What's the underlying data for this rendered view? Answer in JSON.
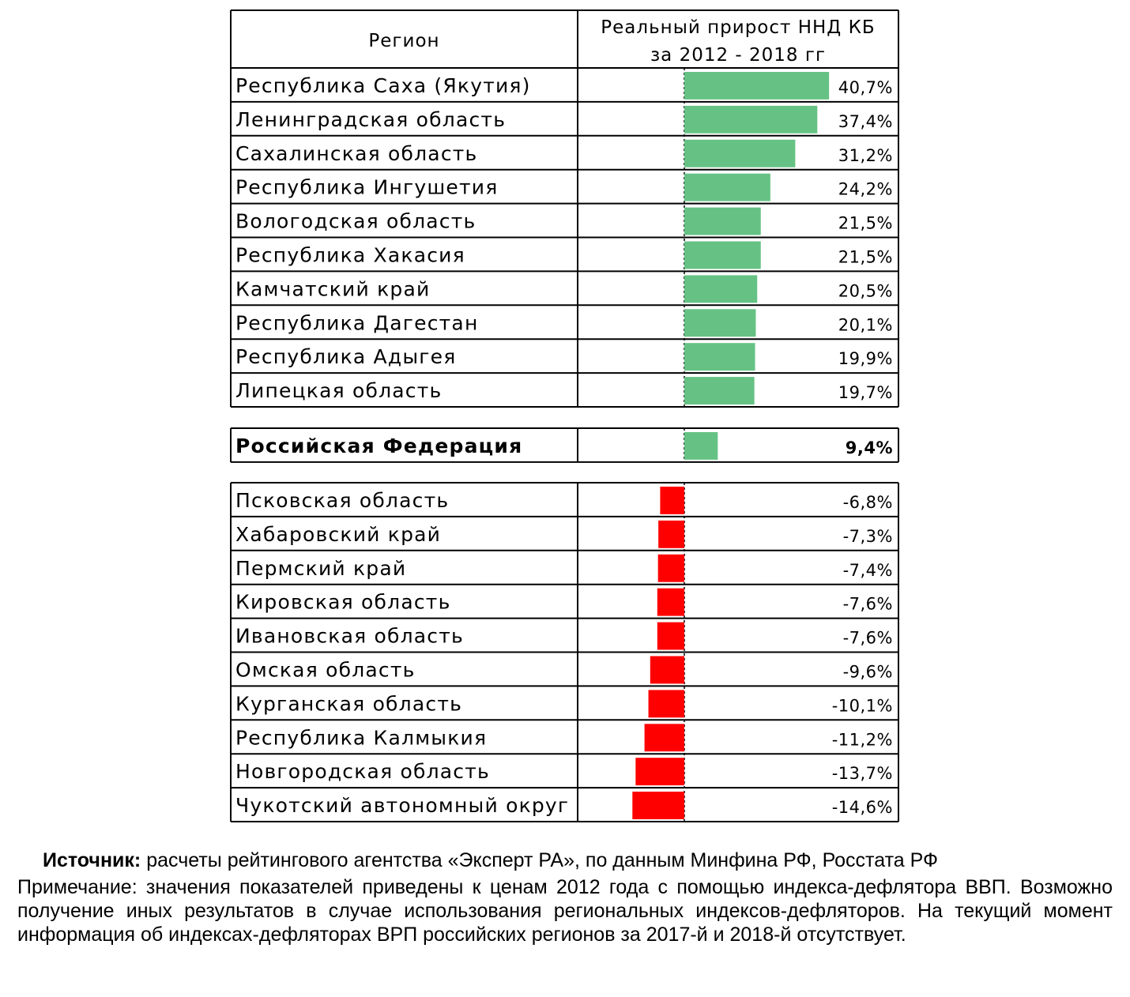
{
  "header": {
    "region": "Регион",
    "metric_line1": "Реальный прирост ННД КБ",
    "metric_line2": "за 2012 - 2018 гг"
  },
  "chart_data": {
    "type": "bar",
    "orientation": "horizontal",
    "unit": "%",
    "groups": [
      {
        "rows": [
          {
            "name": "Республика Саха (Якутия)",
            "value": 40.7,
            "label": "40,7%"
          },
          {
            "name": "Ленинградская область",
            "value": 37.4,
            "label": "37,4%"
          },
          {
            "name": "Сахалинская область",
            "value": 31.2,
            "label": "31,2%"
          },
          {
            "name": "Республика Ингушетия",
            "value": 24.2,
            "label": "24,2%"
          },
          {
            "name": "Вологодская область",
            "value": 21.5,
            "label": "21,5%"
          },
          {
            "name": "Республика Хакасия",
            "value": 21.5,
            "label": "21,5%"
          },
          {
            "name": "Камчатский край",
            "value": 20.5,
            "label": "20,5%"
          },
          {
            "name": "Республика Дагестан",
            "value": 20.1,
            "label": "20,1%"
          },
          {
            "name": "Республика Адыгея",
            "value": 19.9,
            "label": "19,9%"
          },
          {
            "name": "Липецкая область",
            "value": 19.7,
            "label": "19,7%"
          }
        ]
      },
      {
        "bold": true,
        "rows": [
          {
            "name": "Российская Федерация",
            "value": 9.4,
            "label": "9,4%"
          }
        ]
      },
      {
        "rows": [
          {
            "name": "Псковская область",
            "value": -6.8,
            "label": "-6,8%"
          },
          {
            "name": "Хабаровский край",
            "value": -7.3,
            "label": "-7,3%"
          },
          {
            "name": "Пермский край",
            "value": -7.4,
            "label": "-7,4%"
          },
          {
            "name": "Кировская область",
            "value": -7.6,
            "label": "-7,6%"
          },
          {
            "name": "Ивановская область",
            "value": -7.6,
            "label": "-7,6%"
          },
          {
            "name": "Омская область",
            "value": -9.6,
            "label": "-9,6%"
          },
          {
            "name": "Курганская область",
            "value": -10.1,
            "label": "-10,1%"
          },
          {
            "name": "Республика Калмыкия",
            "value": -11.2,
            "label": "-11,2%"
          },
          {
            "name": "Новгородская область",
            "value": -13.7,
            "label": "-13,7%"
          },
          {
            "name": "Чукотский автономный округ",
            "value": -14.6,
            "label": "-14,6%"
          }
        ]
      }
    ],
    "colors": {
      "positive": "#66c284",
      "negative": "#ff0000"
    }
  },
  "notes": {
    "source_label": "Источник:",
    "source_text": " расчеты рейтингового агентства «Эксперт РА», по данным Минфина РФ, Росстата РФ",
    "remark": "Примечание: значения показателей приведены к ценам 2012 года с помощью индекса-дефлятора ВВП. Возможно получение иных результатов в случае использования региональных индексов-дефляторов. На текущий момент информация об индексах-дефляторах ВРП российских регионов за 2017-й и 2018-й отсутствует."
  }
}
